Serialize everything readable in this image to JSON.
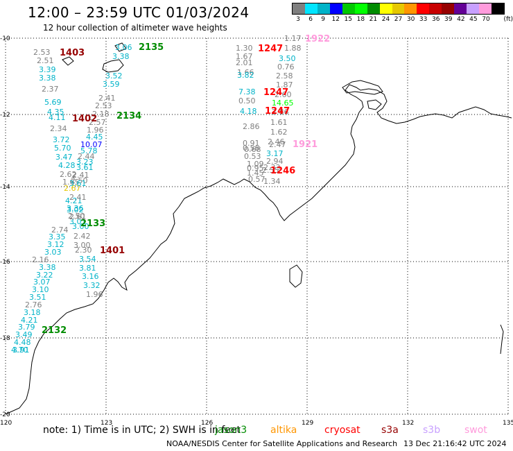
{
  "header": {
    "title": "12:00 – 23:59 UTC 01/03/2024",
    "subtitle": "12 hour collection of altimeter wave heights"
  },
  "colorbar": {
    "unit": "(ft)",
    "bins": [
      {
        "label": "3",
        "color": "#7f7f7f"
      },
      {
        "label": "6",
        "color": "#00e5ff"
      },
      {
        "label": "9",
        "color": "#00b3c8"
      },
      {
        "label": "12",
        "color": "#0000ff"
      },
      {
        "label": "15",
        "color": "#00c800"
      },
      {
        "label": "18",
        "color": "#00ff00"
      },
      {
        "label": "21",
        "color": "#008c00"
      },
      {
        "label": "24",
        "color": "#ffff00"
      },
      {
        "label": "27",
        "color": "#e6c800"
      },
      {
        "label": "30",
        "color": "#ff9600"
      },
      {
        "label": "33",
        "color": "#ff0000"
      },
      {
        "label": "36",
        "color": "#c80000"
      },
      {
        "label": "39",
        "color": "#960000"
      },
      {
        "label": "42",
        "color": "#640096"
      },
      {
        "label": "45",
        "color": "#c8a0ff"
      },
      {
        "label": "70",
        "color": "#ff9bdc"
      },
      {
        "label": "",
        "color": "#000000"
      }
    ]
  },
  "map": {
    "lon_ticks": [
      "120",
      "123",
      "126",
      "129",
      "132",
      "135"
    ],
    "lat_ticks": [
      "-10",
      "-12",
      "-14",
      "-16",
      "-18",
      "-20"
    ],
    "passes": [
      {
        "id": "1403",
        "color": "#960000"
      },
      {
        "id": "2135",
        "color": "#008c00"
      },
      {
        "id": "1402",
        "color": "#960000"
      },
      {
        "id": "2134",
        "color": "#008c00"
      },
      {
        "id": "2133",
        "color": "#008c00"
      },
      {
        "id": "1401",
        "color": "#960000"
      },
      {
        "id": "2132",
        "color": "#008c00"
      },
      {
        "id": "1247",
        "color": "#ff0000"
      },
      {
        "id": "1922",
        "color": "#ff9bdc"
      },
      {
        "id": "1921",
        "color": "#ff9bdc"
      },
      {
        "id": "1246",
        "color": "#ff0000"
      }
    ],
    "wave_heights": [
      {
        "v": "2.53",
        "c": "#7f7f7f"
      },
      {
        "v": "2.51",
        "c": "#7f7f7f"
      },
      {
        "v": "3.39",
        "c": "#00b3c8"
      },
      {
        "v": "3.38",
        "c": "#00b3c8"
      },
      {
        "v": "2.37",
        "c": "#7f7f7f"
      },
      {
        "v": "5.69",
        "c": "#00b3c8"
      },
      {
        "v": "4.35",
        "c": "#00b3c8"
      },
      {
        "v": "4.11",
        "c": "#00b3c8"
      },
      {
        "v": "2.34",
        "c": "#7f7f7f"
      },
      {
        "v": "3.72",
        "c": "#00b3c8"
      },
      {
        "v": "5.70",
        "c": "#00b3c8"
      },
      {
        "v": "3.47",
        "c": "#00b3c8"
      },
      {
        "v": "4.28",
        "c": "#00b3c8"
      },
      {
        "v": "2.62",
        "c": "#7f7f7f"
      },
      {
        "v": "1.65",
        "c": "#7f7f7f"
      },
      {
        "v": "2.67",
        "c": "#e6c800"
      },
      {
        "v": "4.21",
        "c": "#00b3c8"
      },
      {
        "v": "3.36",
        "c": "#00b3c8"
      },
      {
        "v": "2.50",
        "c": "#7f7f7f"
      },
      {
        "v": "3.01",
        "c": "#00b3c8"
      },
      {
        "v": "2.74",
        "c": "#7f7f7f"
      },
      {
        "v": "3.35",
        "c": "#00b3c8"
      },
      {
        "v": "3.12",
        "c": "#00b3c8"
      },
      {
        "v": "3.03",
        "c": "#00b3c8"
      },
      {
        "v": "2.16",
        "c": "#7f7f7f"
      },
      {
        "v": "3.38",
        "c": "#00b3c8"
      },
      {
        "v": "3.22",
        "c": "#00b3c8"
      },
      {
        "v": "3.07",
        "c": "#00b3c8"
      },
      {
        "v": "3.10",
        "c": "#00b3c8"
      },
      {
        "v": "3.51",
        "c": "#00b3c8"
      },
      {
        "v": "2.76",
        "c": "#7f7f7f"
      },
      {
        "v": "3.18",
        "c": "#00b3c8"
      },
      {
        "v": "4.21",
        "c": "#00b3c8"
      },
      {
        "v": "3.79",
        "c": "#00b3c8"
      },
      {
        "v": "3.49",
        "c": "#00b3c8"
      },
      {
        "v": "4.48",
        "c": "#00b3c8"
      },
      {
        "v": "3.91",
        "c": "#00b3c8"
      },
      {
        "v": "4.70",
        "c": "#00b3c8"
      },
      {
        "v": "3.06",
        "c": "#00b3c8"
      },
      {
        "v": "3.38",
        "c": "#00b3c8"
      },
      {
        "v": "3.52",
        "c": "#00b3c8"
      },
      {
        "v": "3.59",
        "c": "#00b3c8"
      },
      {
        "v": "2.41",
        "c": "#7f7f7f"
      },
      {
        "v": "2.53",
        "c": "#7f7f7f"
      },
      {
        "v": "2.18",
        "c": "#7f7f7f"
      },
      {
        "v": "2.57",
        "c": "#7f7f7f"
      },
      {
        "v": "1.96",
        "c": "#7f7f7f"
      },
      {
        "v": "4.45",
        "c": "#00b3c8"
      },
      {
        "v": "10.07",
        "c": "#0000ff"
      },
      {
        "v": "5.78",
        "c": "#00b3c8"
      },
      {
        "v": "2.44",
        "c": "#7f7f7f"
      },
      {
        "v": "3.23",
        "c": "#00b3c8"
      },
      {
        "v": "3.61",
        "c": "#00b3c8"
      },
      {
        "v": "2.41",
        "c": "#7f7f7f"
      },
      {
        "v": "2.50",
        "c": "#7f7f7f"
      },
      {
        "v": "3.61",
        "c": "#00b3c8"
      },
      {
        "v": "2.41",
        "c": "#7f7f7f"
      },
      {
        "v": "3.02",
        "c": "#00b3c8"
      },
      {
        "v": "2.61",
        "c": "#7f7f7f"
      },
      {
        "v": "3.00",
        "c": "#00b3c8"
      },
      {
        "v": "2.42",
        "c": "#7f7f7f"
      },
      {
        "v": "3.00",
        "c": "#7f7f7f"
      },
      {
        "v": "2.30",
        "c": "#7f7f7f"
      },
      {
        "v": "3.54",
        "c": "#00b3c8"
      },
      {
        "v": "3.81",
        "c": "#00b3c8"
      },
      {
        "v": "3.16",
        "c": "#00b3c8"
      },
      {
        "v": "3.32",
        "c": "#00b3c8"
      },
      {
        "v": "1.96",
        "c": "#7f7f7f"
      },
      {
        "v": "1.30",
        "c": "#7f7f7f"
      },
      {
        "v": "1.67",
        "c": "#7f7f7f"
      },
      {
        "v": "2.01",
        "c": "#7f7f7f"
      },
      {
        "v": "1.66",
        "c": "#7f7f7f"
      },
      {
        "v": "3.82",
        "c": "#00b3c8"
      },
      {
        "v": "7.38",
        "c": "#00b3c8"
      },
      {
        "v": "0.50",
        "c": "#7f7f7f"
      },
      {
        "v": "4.18",
        "c": "#00b3c8"
      },
      {
        "v": "2.86",
        "c": "#7f7f7f"
      },
      {
        "v": "0.91",
        "c": "#7f7f7f"
      },
      {
        "v": "0.56",
        "c": "#7f7f7f"
      },
      {
        "v": "0.68",
        "c": "#7f7f7f"
      },
      {
        "v": "0.53",
        "c": "#7f7f7f"
      },
      {
        "v": "1.09",
        "c": "#7f7f7f"
      },
      {
        "v": "0.95",
        "c": "#7f7f7f"
      },
      {
        "v": "1.45",
        "c": "#7f7f7f"
      },
      {
        "v": "0.57",
        "c": "#7f7f7f"
      },
      {
        "v": "1.17",
        "c": "#7f7f7f"
      },
      {
        "v": "1.88",
        "c": "#7f7f7f"
      },
      {
        "v": "3.50",
        "c": "#00b3c8"
      },
      {
        "v": "0.76",
        "c": "#7f7f7f"
      },
      {
        "v": "2.58",
        "c": "#7f7f7f"
      },
      {
        "v": "1.87",
        "c": "#7f7f7f"
      },
      {
        "v": "2.60",
        "c": "#7f7f7f"
      },
      {
        "v": "14.65",
        "c": "#00ff00"
      },
      {
        "v": "2.86",
        "c": "#7f7f7f"
      },
      {
        "v": "1.61",
        "c": "#7f7f7f"
      },
      {
        "v": "1.62",
        "c": "#7f7f7f"
      },
      {
        "v": "2.46",
        "c": "#7f7f7f"
      },
      {
        "v": "2.47",
        "c": "#7f7f7f"
      },
      {
        "v": "3.17",
        "c": "#00b3c8"
      },
      {
        "v": "2.94",
        "c": "#7f7f7f"
      },
      {
        "v": "2.33",
        "c": "#7f7f7f"
      },
      {
        "v": "2.55",
        "c": "#7f7f7f"
      },
      {
        "v": "1.34",
        "c": "#7f7f7f"
      }
    ]
  },
  "footer": {
    "note": "note:  1) Time is in UTC; 2) SWH is in feet",
    "satellites": [
      {
        "name": "jason3",
        "color": "#008c00"
      },
      {
        "name": "altika",
        "color": "#ff9600"
      },
      {
        "name": "cryosat",
        "color": "#ff0000"
      },
      {
        "name": "s3a",
        "color": "#960000"
      },
      {
        "name": "s3b",
        "color": "#c8a0ff"
      },
      {
        "name": "swot",
        "color": "#ff9bdc"
      }
    ],
    "credit": "NOAA/NESDIS Center for Satellite Applications and Research",
    "generated": "13 Dec 21:16:42 UTC 2024"
  }
}
